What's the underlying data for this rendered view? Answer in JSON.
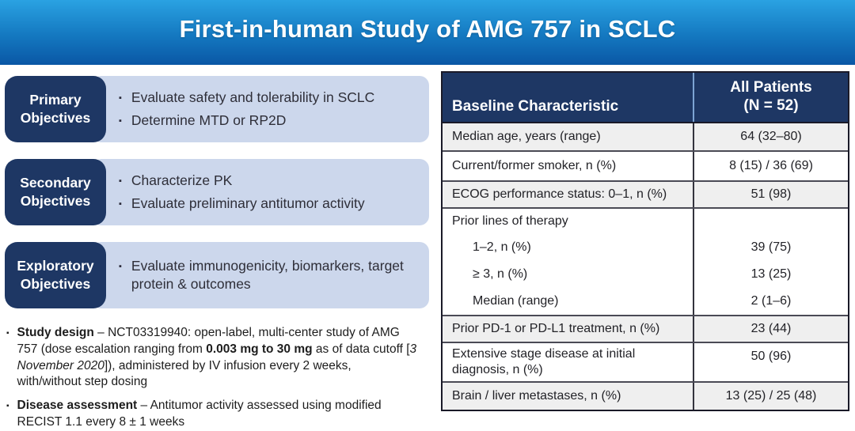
{
  "title": "First-in-human Study of AMG 757 in SCLC",
  "objectives": [
    {
      "label": "Primary Objectives",
      "bullets": [
        "Evaluate safety and tolerability in SCLC",
        "Determine MTD or RP2D"
      ]
    },
    {
      "label": "Secondary Objectives",
      "bullets": [
        "Characterize PK",
        "Evaluate preliminary antitumor activity"
      ]
    },
    {
      "label": "Exploratory Objectives",
      "bullets": [
        "Evaluate immunogenicity, biomarkers, target protein & outcomes"
      ]
    }
  ],
  "notes": [
    {
      "segments": [
        {
          "text": "Study design"
        },
        {
          "text": " – NCT03319940: open-label, multi-center study of AMG 757 (dose escalation ranging from "
        },
        {
          "text": "0.003 mg to 30 mg"
        },
        {
          "text": " as of data cutoff ["
        },
        {
          "text": "3 November 2020"
        },
        {
          "text": "]), administered by IV infusion every 2 weeks, with/without step dosing"
        }
      ]
    },
    {
      "segments": [
        {
          "text": "Disease assessment"
        },
        {
          "text": " – Antitumor activity assessed using modified RECIST 1.1 every 8 ± 1 weeks"
        }
      ]
    }
  ],
  "table": {
    "header": {
      "characteristic": "Baseline Characteristic",
      "all_patients_line1": "All Patients",
      "all_patients_line2": "(N = 52)"
    },
    "rows": [
      {
        "label": "Median age, years (range)",
        "value": "64 (32–80)"
      },
      {
        "label": "Current/former smoker, n (%)",
        "value": "8 (15) / 36 (69)"
      },
      {
        "label": "ECOG performance status: 0–1, n (%)",
        "value": "51 (98)"
      },
      {
        "label": "Prior lines of therapy",
        "value": ""
      },
      {
        "label": "1–2, n (%)",
        "value": "39 (75)"
      },
      {
        "label": "≥ 3, n (%)",
        "value": "13 (25)"
      },
      {
        "label": "Median (range)",
        "value": "2 (1–6)"
      },
      {
        "label": "Prior PD-1 or PD-L1 treatment, n (%)",
        "value": "23 (44)"
      },
      {
        "label": "Extensive stage disease at initial diagnosis, n (%)",
        "value": "50 (96)"
      },
      {
        "label": "Brain / liver metastases, n (%)",
        "value": "13 (25) / 25 (48)"
      }
    ]
  },
  "colors": {
    "banner_top": "#2aa2e2",
    "banner_bottom": "#0a57a5",
    "navy": "#1e3764",
    "light_blue_panel": "#ccd7ec",
    "shaded_row": "#efefef",
    "header_divider": "#7da4d4"
  }
}
